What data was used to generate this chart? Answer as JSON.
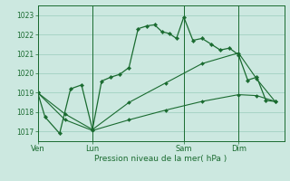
{
  "background_color": "#cce8e0",
  "grid_color": "#99ccbb",
  "line_color": "#1a6b30",
  "title": "Pression niveau de la mer( hPa )",
  "ylim": [
    1016.5,
    1023.5
  ],
  "yticks": [
    1017,
    1018,
    1019,
    1020,
    1021,
    1022,
    1023
  ],
  "day_lines": [
    {
      "label": "Ven",
      "x": 0.0
    },
    {
      "label": "Lun",
      "x": 3.0
    },
    {
      "label": "Sam",
      "x": 8.0
    },
    {
      "label": "Dim",
      "x": 11.0
    }
  ],
  "xlim": [
    0,
    13.5
  ],
  "line1_x": [
    0.0,
    0.4,
    1.2,
    1.8,
    2.4,
    3.0,
    3.5,
    4.0,
    4.5,
    5.0,
    5.5,
    6.0,
    6.4,
    6.8,
    7.2,
    7.6,
    8.0,
    8.5,
    9.0,
    9.5,
    10.0,
    10.5,
    11.0,
    11.5,
    12.0,
    12.5,
    13.0
  ],
  "line1_y": [
    1019.0,
    1017.75,
    1016.9,
    1019.2,
    1019.4,
    1017.1,
    1019.6,
    1019.8,
    1019.95,
    1020.3,
    1022.3,
    1022.45,
    1022.5,
    1022.15,
    1022.05,
    1021.8,
    1022.9,
    1021.7,
    1021.8,
    1021.5,
    1021.2,
    1021.3,
    1020.95,
    1019.65,
    1019.8,
    1018.6,
    1018.55
  ],
  "line2_x": [
    0.0,
    1.5,
    3.0,
    5.0,
    7.0,
    9.0,
    11.0,
    12.0,
    13.0
  ],
  "line2_y": [
    1019.0,
    1017.9,
    1017.1,
    1018.5,
    1019.5,
    1020.5,
    1021.05,
    1019.7,
    1018.55
  ],
  "line3_x": [
    0.0,
    1.5,
    3.0,
    5.0,
    7.0,
    9.0,
    11.0,
    12.0,
    13.0
  ],
  "line3_y": [
    1019.0,
    1017.6,
    1017.05,
    1017.6,
    1018.1,
    1018.55,
    1018.9,
    1018.85,
    1018.55
  ]
}
